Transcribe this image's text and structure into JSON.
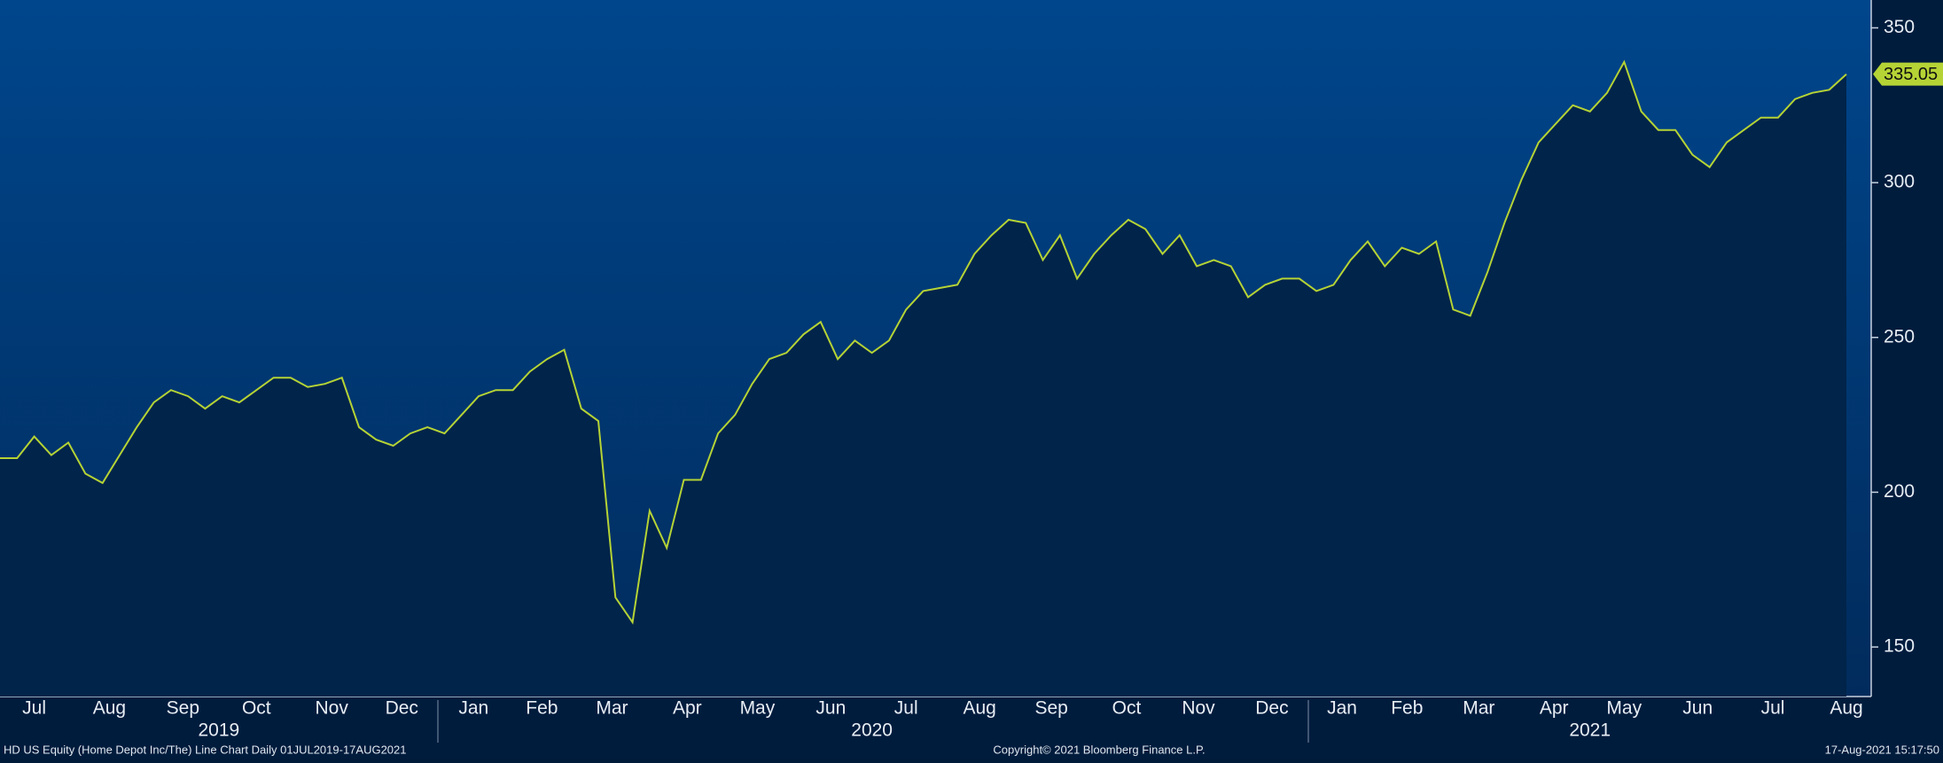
{
  "chart_data": {
    "type": "line",
    "values": [
      211,
      211,
      218,
      212,
      216,
      206,
      203,
      212,
      221,
      229,
      233,
      231,
      227,
      231,
      229,
      233,
      237,
      237,
      234,
      235,
      237,
      221,
      217,
      215,
      219,
      221,
      219,
      225,
      231,
      233,
      233,
      239,
      243,
      246,
      227,
      223,
      166,
      158,
      194,
      182,
      204,
      204,
      219,
      225,
      235,
      243,
      245,
      251,
      255,
      243,
      249,
      245,
      249,
      259,
      265,
      266,
      267,
      277,
      283,
      288,
      287,
      275,
      283,
      269,
      277,
      283,
      288,
      285,
      277,
      283,
      273,
      275,
      273,
      263,
      267,
      269,
      269,
      265,
      267,
      275,
      281,
      273,
      279,
      277,
      281,
      259,
      257,
      271,
      287,
      301,
      313,
      319,
      325,
      323,
      329,
      339,
      323,
      317,
      317,
      309,
      305,
      313,
      317,
      321,
      321,
      327,
      329,
      330,
      335.05
    ],
    "color": "#b5d335",
    "xlim": [
      0,
      108
    ],
    "xticks": [
      {
        "value": 2.0,
        "label": "Jul"
      },
      {
        "value": 6.4,
        "label": "Aug"
      },
      {
        "value": 10.7,
        "label": "Sep"
      },
      {
        "value": 15.0,
        "label": "Oct"
      },
      {
        "value": 19.4,
        "label": "Nov"
      },
      {
        "value": 23.5,
        "label": "Dec"
      },
      {
        "value": 27.7,
        "label": "Jan"
      },
      {
        "value": 31.7,
        "label": "Feb"
      },
      {
        "value": 35.8,
        "label": "Mar"
      },
      {
        "value": 40.2,
        "label": "Apr"
      },
      {
        "value": 44.3,
        "label": "May"
      },
      {
        "value": 48.6,
        "label": "Jun"
      },
      {
        "value": 53.0,
        "label": "Jul"
      },
      {
        "value": 57.3,
        "label": "Aug"
      },
      {
        "value": 61.5,
        "label": "Sep"
      },
      {
        "value": 65.9,
        "label": "Oct"
      },
      {
        "value": 70.1,
        "label": "Nov"
      },
      {
        "value": 74.4,
        "label": "Dec"
      },
      {
        "value": 78.5,
        "label": "Jan"
      },
      {
        "value": 82.3,
        "label": "Feb"
      },
      {
        "value": 86.5,
        "label": "Mar"
      },
      {
        "value": 90.9,
        "label": "Apr"
      },
      {
        "value": 95.0,
        "label": "May"
      },
      {
        "value": 99.3,
        "label": "Jun"
      },
      {
        "value": 103.7,
        "label": "Jul"
      },
      {
        "value": 108.0,
        "label": "Aug"
      }
    ],
    "year_ticks": [
      {
        "value": 12.8,
        "label": "2019"
      },
      {
        "value": 51.0,
        "label": "2020"
      },
      {
        "value": 93.0,
        "label": "2021"
      }
    ],
    "ylim": [
      134,
      359
    ],
    "yticks": [
      150,
      200,
      250,
      300,
      350
    ]
  },
  "footer": {
    "description": "HD US Equity (Home Depot Inc/The) Line Chart  Daily 01JUL2019-17AUG2021",
    "copyright": "Copyright© 2021 Bloomberg Finance L.P.",
    "timestamp": "17-Aug-2021 15:17:50"
  }
}
